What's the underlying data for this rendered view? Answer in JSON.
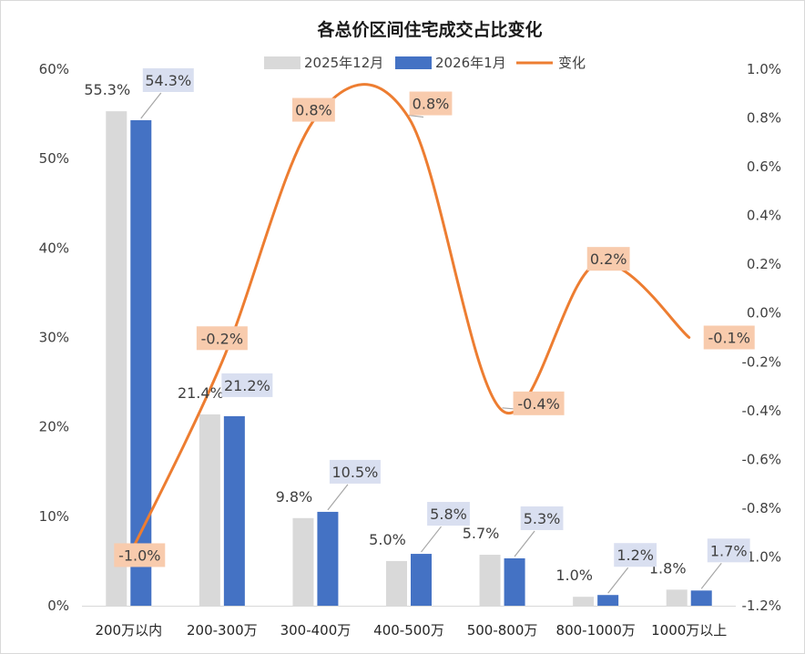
{
  "chart_data": {
    "type": "bar+line",
    "title": "各总价区间住宅成交占比变化",
    "categories": [
      "200万以内",
      "200-300万",
      "300-400万",
      "400-500万",
      "500-800万",
      "800-1000万",
      "1000万以上"
    ],
    "series": [
      {
        "name": "2025年12月",
        "type": "bar",
        "axis": "left",
        "color": "#d9d9d9",
        "values": [
          55.3,
          21.4,
          9.8,
          5.0,
          5.7,
          1.0,
          1.8
        ],
        "labels": [
          "55.3%",
          "21.4%",
          "9.8%",
          "5.0%",
          "5.7%",
          "1.0%",
          "1.8%"
        ]
      },
      {
        "name": "2026年1月",
        "type": "bar",
        "axis": "left",
        "color": "#4472c4",
        "values": [
          54.3,
          21.2,
          10.5,
          5.8,
          5.3,
          1.2,
          1.7
        ],
        "labels": [
          "54.3%",
          "21.2%",
          "10.5%",
          "5.8%",
          "5.3%",
          "1.2%",
          "1.7%"
        ]
      },
      {
        "name": "变化",
        "type": "line",
        "axis": "right",
        "color": "#ed7d31",
        "smooth": true,
        "values": [
          -1.0,
          -0.2,
          0.8,
          0.8,
          -0.4,
          0.2,
          -0.1
        ],
        "labels": [
          "-1.0%",
          "-0.2%",
          "0.8%",
          "0.8%",
          "-0.4%",
          "0.2%",
          "-0.1%"
        ]
      }
    ],
    "y_left": {
      "min": 0,
      "max": 60,
      "step": 10,
      "ticks": [
        "0%",
        "10%",
        "20%",
        "30%",
        "40%",
        "50%",
        "60%"
      ]
    },
    "y_right": {
      "min": -1.2,
      "max": 1.0,
      "step": 0.2,
      "ticks": [
        "-1.2%",
        "-1.0%",
        "-0.8%",
        "-0.6%",
        "-0.4%",
        "-0.2%",
        "0.0%",
        "0.2%",
        "0.4%",
        "0.6%",
        "0.8%",
        "1.0%"
      ]
    },
    "legend_position": "top",
    "grid": false
  }
}
